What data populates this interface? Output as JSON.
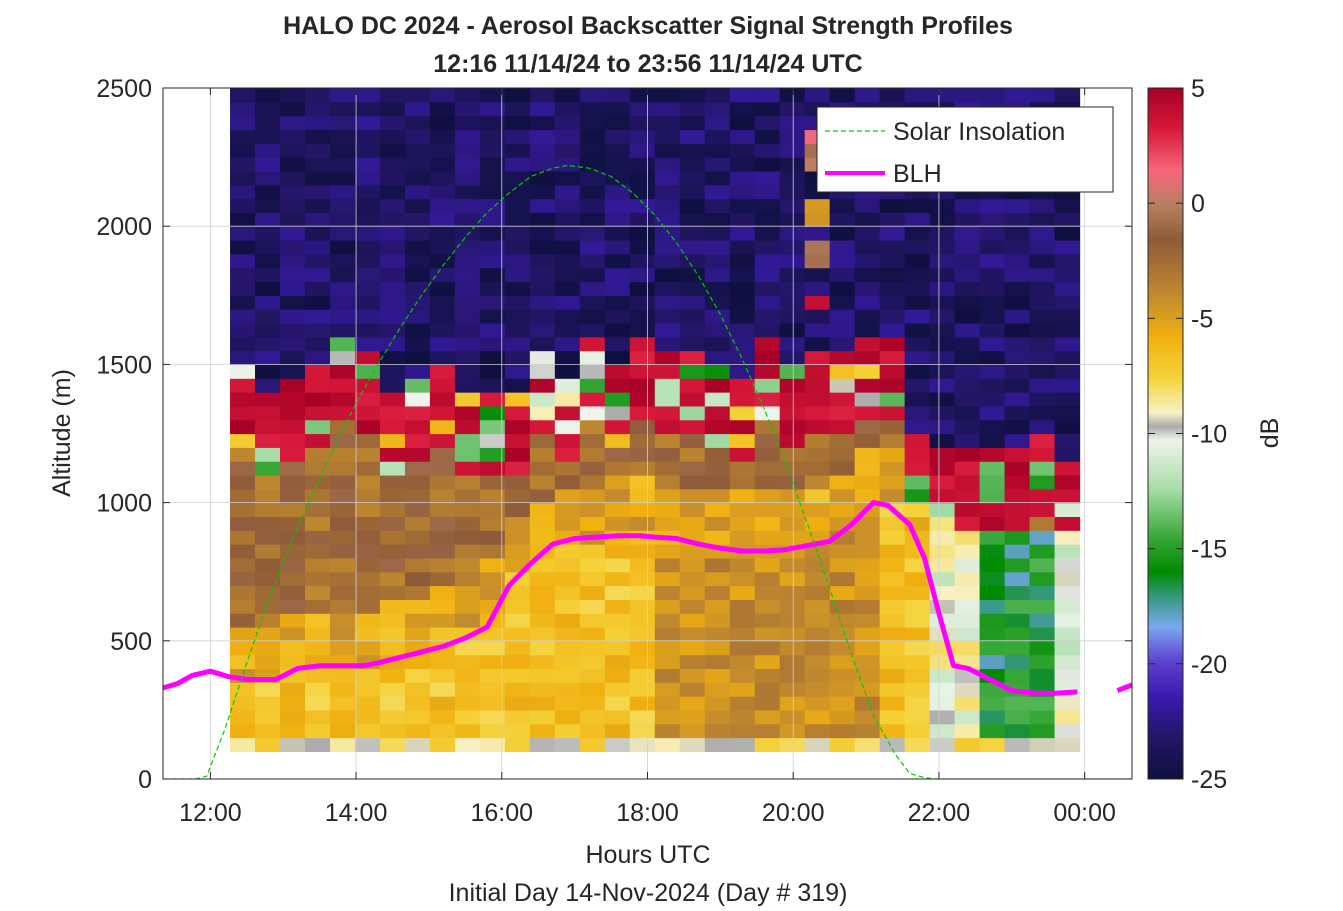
{
  "chart_data": {
    "type": "heatmap",
    "title_line1": "HALO DC 2024 - Aerosol Backscatter Signal Strength Profiles",
    "title_line2": "12:16 11/14/24 to 23:56 11/14/24  UTC",
    "xlabel": "Hours UTC",
    "ylabel": "Altitude (m)",
    "footer": "Initial Day 14-Nov-2024 (Day # 319)",
    "x_ticks": [
      {
        "hour": 12,
        "label": "12:00"
      },
      {
        "hour": 14,
        "label": "14:00"
      },
      {
        "hour": 16,
        "label": "16:00"
      },
      {
        "hour": 18,
        "label": "18:00"
      },
      {
        "hour": 20,
        "label": "20:00"
      },
      {
        "hour": 22,
        "label": "22:00"
      },
      {
        "hour": 24,
        "label": "00:00"
      }
    ],
    "y_ticks": [
      {
        "value": 0,
        "label": "0"
      },
      {
        "value": 500,
        "label": "500"
      },
      {
        "value": 1000,
        "label": "1000"
      },
      {
        "value": 1500,
        "label": "1500"
      },
      {
        "value": 2000,
        "label": "2000"
      },
      {
        "value": 2500,
        "label": "2500"
      }
    ],
    "xlim": [
      11.35,
      24.65
    ],
    "ylim": [
      0,
      2500
    ],
    "grid": true,
    "colorbar": {
      "label": "dB",
      "range": [
        -25,
        5
      ],
      "ticks": [
        {
          "value": 5,
          "label": "5"
        },
        {
          "value": 0,
          "label": "0"
        },
        {
          "value": -5,
          "label": "-5"
        },
        {
          "value": -10,
          "label": "-10"
        },
        {
          "value": -15,
          "label": "-15"
        },
        {
          "value": -20,
          "label": "-20"
        },
        {
          "value": -25,
          "label": "-25"
        }
      ]
    },
    "heatmap": {
      "time_start_hour": 12.27,
      "time_end_hour": 23.93,
      "altitude_start_m": 100,
      "altitude_end_m": 2500,
      "bin_height_m": 50,
      "value_unit": "dB",
      "profiles_note": "approximate backscatter per time/altitude bin"
    },
    "legend": {
      "placement": "top-right",
      "entries": [
        {
          "name": "Solar Insolation",
          "color": "#00cc00",
          "style": "dashed"
        },
        {
          "name": "BLH",
          "color": "#ff00ff",
          "style": "solid"
        }
      ]
    },
    "series": [
      {
        "name": "BLH",
        "color": "#ff00ff",
        "x": [
          11.35,
          11.55,
          11.75,
          12.0,
          12.25,
          12.5,
          12.9,
          13.2,
          13.5,
          13.8,
          14.1,
          14.3,
          14.6,
          14.9,
          15.2,
          15.5,
          15.8,
          16.1,
          16.4,
          16.7,
          17.0,
          17.3,
          17.6,
          17.9,
          18.1,
          18.4,
          18.7,
          19.0,
          19.3,
          19.6,
          19.9,
          20.2,
          20.5,
          20.8,
          21.1,
          21.3,
          21.6,
          21.8,
          22.0,
          22.2,
          22.4,
          22.7,
          23.0,
          23.3,
          23.6,
          23.9
        ],
        "y": [
          330,
          345,
          375,
          390,
          370,
          360,
          360,
          400,
          410,
          410,
          410,
          420,
          440,
          460,
          480,
          510,
          550,
          700,
          780,
          850,
          870,
          875,
          880,
          880,
          875,
          870,
          850,
          835,
          825,
          825,
          830,
          845,
          860,
          920,
          1000,
          990,
          920,
          800,
          600,
          410,
          400,
          360,
          320,
          310,
          310,
          315
        ]
      },
      {
        "name": "BLH_tail",
        "color": "#ff00ff",
        "x": [
          24.45,
          24.65
        ],
        "y": [
          320,
          340
        ]
      },
      {
        "name": "Solar Insolation",
        "color": "#00cc00",
        "x": [
          11.35,
          11.6,
          11.8,
          11.95,
          12.2,
          12.5,
          12.8,
          13.1,
          13.4,
          13.7,
          14.0,
          14.3,
          14.6,
          14.9,
          15.2,
          15.5,
          15.8,
          16.1,
          16.4,
          16.7,
          16.9,
          17.2,
          17.5,
          17.8,
          18.1,
          18.4,
          18.7,
          19.0,
          19.3,
          19.6,
          19.9,
          20.2,
          20.5,
          20.8,
          21.1,
          21.4,
          21.6,
          21.8,
          21.95,
          22.2,
          22.6,
          23.0,
          23.5,
          24.0,
          24.65
        ],
        "y": [
          0,
          0,
          0,
          10,
          180,
          420,
          650,
          850,
          1030,
          1200,
          1360,
          1500,
          1630,
          1750,
          1860,
          1960,
          2050,
          2120,
          2180,
          2210,
          2220,
          2210,
          2180,
          2120,
          2040,
          1940,
          1820,
          1680,
          1520,
          1340,
          1140,
          920,
          690,
          450,
          230,
          90,
          20,
          5,
          0,
          0,
          0,
          0,
          0,
          0,
          0
        ]
      }
    ]
  }
}
